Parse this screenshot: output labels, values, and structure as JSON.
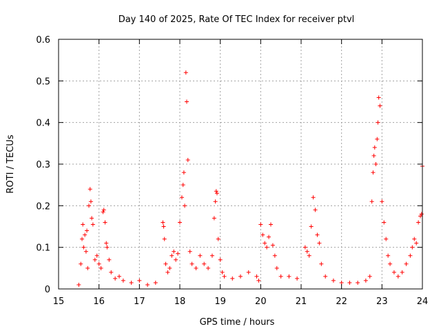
{
  "chart_data": {
    "type": "scatter",
    "title": "Day 140 of 2025, Rate Of TEC Index for receiver ptvl",
    "xlabel": "GPS time / hours",
    "ylabel": "ROTI / TECUs",
    "xlim": [
      15,
      24
    ],
    "ylim": [
      0,
      0.6
    ],
    "grid": true,
    "marker": "+",
    "marker_color": "#ff0000",
    "x_ticks": [
      15,
      16,
      17,
      18,
      19,
      20,
      21,
      22,
      23,
      24
    ],
    "x_tick_labels": [
      "15",
      "16",
      "17",
      "18",
      "19",
      "20",
      "21",
      "22",
      "23",
      "24"
    ],
    "y_ticks": [
      0,
      0.1,
      0.2,
      0.3,
      0.4,
      0.5,
      0.6
    ],
    "y_tick_labels": [
      "0",
      "0.1",
      "0.2",
      "0.3",
      "0.4",
      "0.5",
      "0.6"
    ],
    "series": [
      {
        "name": "ROTI",
        "x": [
          15.5,
          15.55,
          15.58,
          15.6,
          15.62,
          15.65,
          15.68,
          15.7,
          15.72,
          15.75,
          15.78,
          15.8,
          15.82,
          15.85,
          15.9,
          15.95,
          16.0,
          16.05,
          16.1,
          16.12,
          16.15,
          16.18,
          16.2,
          16.25,
          16.3,
          16.4,
          16.5,
          16.6,
          16.8,
          17.0,
          17.2,
          17.4,
          17.58,
          17.6,
          17.62,
          17.65,
          17.7,
          17.75,
          17.8,
          17.85,
          17.9,
          17.95,
          18.0,
          18.05,
          18.08,
          18.1,
          18.12,
          18.15,
          18.17,
          18.2,
          18.25,
          18.3,
          18.4,
          18.5,
          18.6,
          18.7,
          18.8,
          18.85,
          18.88,
          18.9,
          18.92,
          18.95,
          19.0,
          19.05,
          19.1,
          19.3,
          19.5,
          19.7,
          19.9,
          19.95,
          20.0,
          20.05,
          20.1,
          20.15,
          20.2,
          20.25,
          20.3,
          20.35,
          20.4,
          20.5,
          20.7,
          20.9,
          21.1,
          21.15,
          21.2,
          21.25,
          21.3,
          21.35,
          21.4,
          21.45,
          21.5,
          21.6,
          21.8,
          22.0,
          22.2,
          22.4,
          22.6,
          22.7,
          22.75,
          22.78,
          22.8,
          22.82,
          22.85,
          22.88,
          22.9,
          22.92,
          22.95,
          23.0,
          23.05,
          23.1,
          23.15,
          23.2,
          23.3,
          23.4,
          23.5,
          23.6,
          23.7,
          23.75,
          23.8,
          23.85,
          23.9,
          23.95,
          23.98,
          24.0
        ],
        "y": [
          0.01,
          0.06,
          0.12,
          0.155,
          0.1,
          0.13,
          0.09,
          0.14,
          0.05,
          0.2,
          0.24,
          0.21,
          0.17,
          0.155,
          0.07,
          0.08,
          0.06,
          0.05,
          0.185,
          0.19,
          0.16,
          0.11,
          0.1,
          0.07,
          0.04,
          0.025,
          0.03,
          0.02,
          0.015,
          0.02,
          0.01,
          0.015,
          0.16,
          0.15,
          0.12,
          0.06,
          0.04,
          0.05,
          0.08,
          0.09,
          0.07,
          0.085,
          0.16,
          0.22,
          0.25,
          0.28,
          0.2,
          0.52,
          0.45,
          0.31,
          0.09,
          0.06,
          0.05,
          0.08,
          0.06,
          0.05,
          0.08,
          0.17,
          0.21,
          0.235,
          0.23,
          0.12,
          0.07,
          0.04,
          0.03,
          0.025,
          0.03,
          0.04,
          0.03,
          0.02,
          0.155,
          0.13,
          0.11,
          0.1,
          0.125,
          0.155,
          0.105,
          0.08,
          0.05,
          0.03,
          0.03,
          0.025,
          0.1,
          0.09,
          0.08,
          0.15,
          0.22,
          0.19,
          0.13,
          0.11,
          0.06,
          0.03,
          0.02,
          0.015,
          0.015,
          0.015,
          0.02,
          0.03,
          0.21,
          0.28,
          0.32,
          0.34,
          0.3,
          0.36,
          0.4,
          0.46,
          0.44,
          0.21,
          0.16,
          0.12,
          0.08,
          0.06,
          0.04,
          0.03,
          0.04,
          0.06,
          0.08,
          0.1,
          0.12,
          0.11,
          0.16,
          0.175,
          0.18,
          0.295
        ]
      }
    ]
  }
}
